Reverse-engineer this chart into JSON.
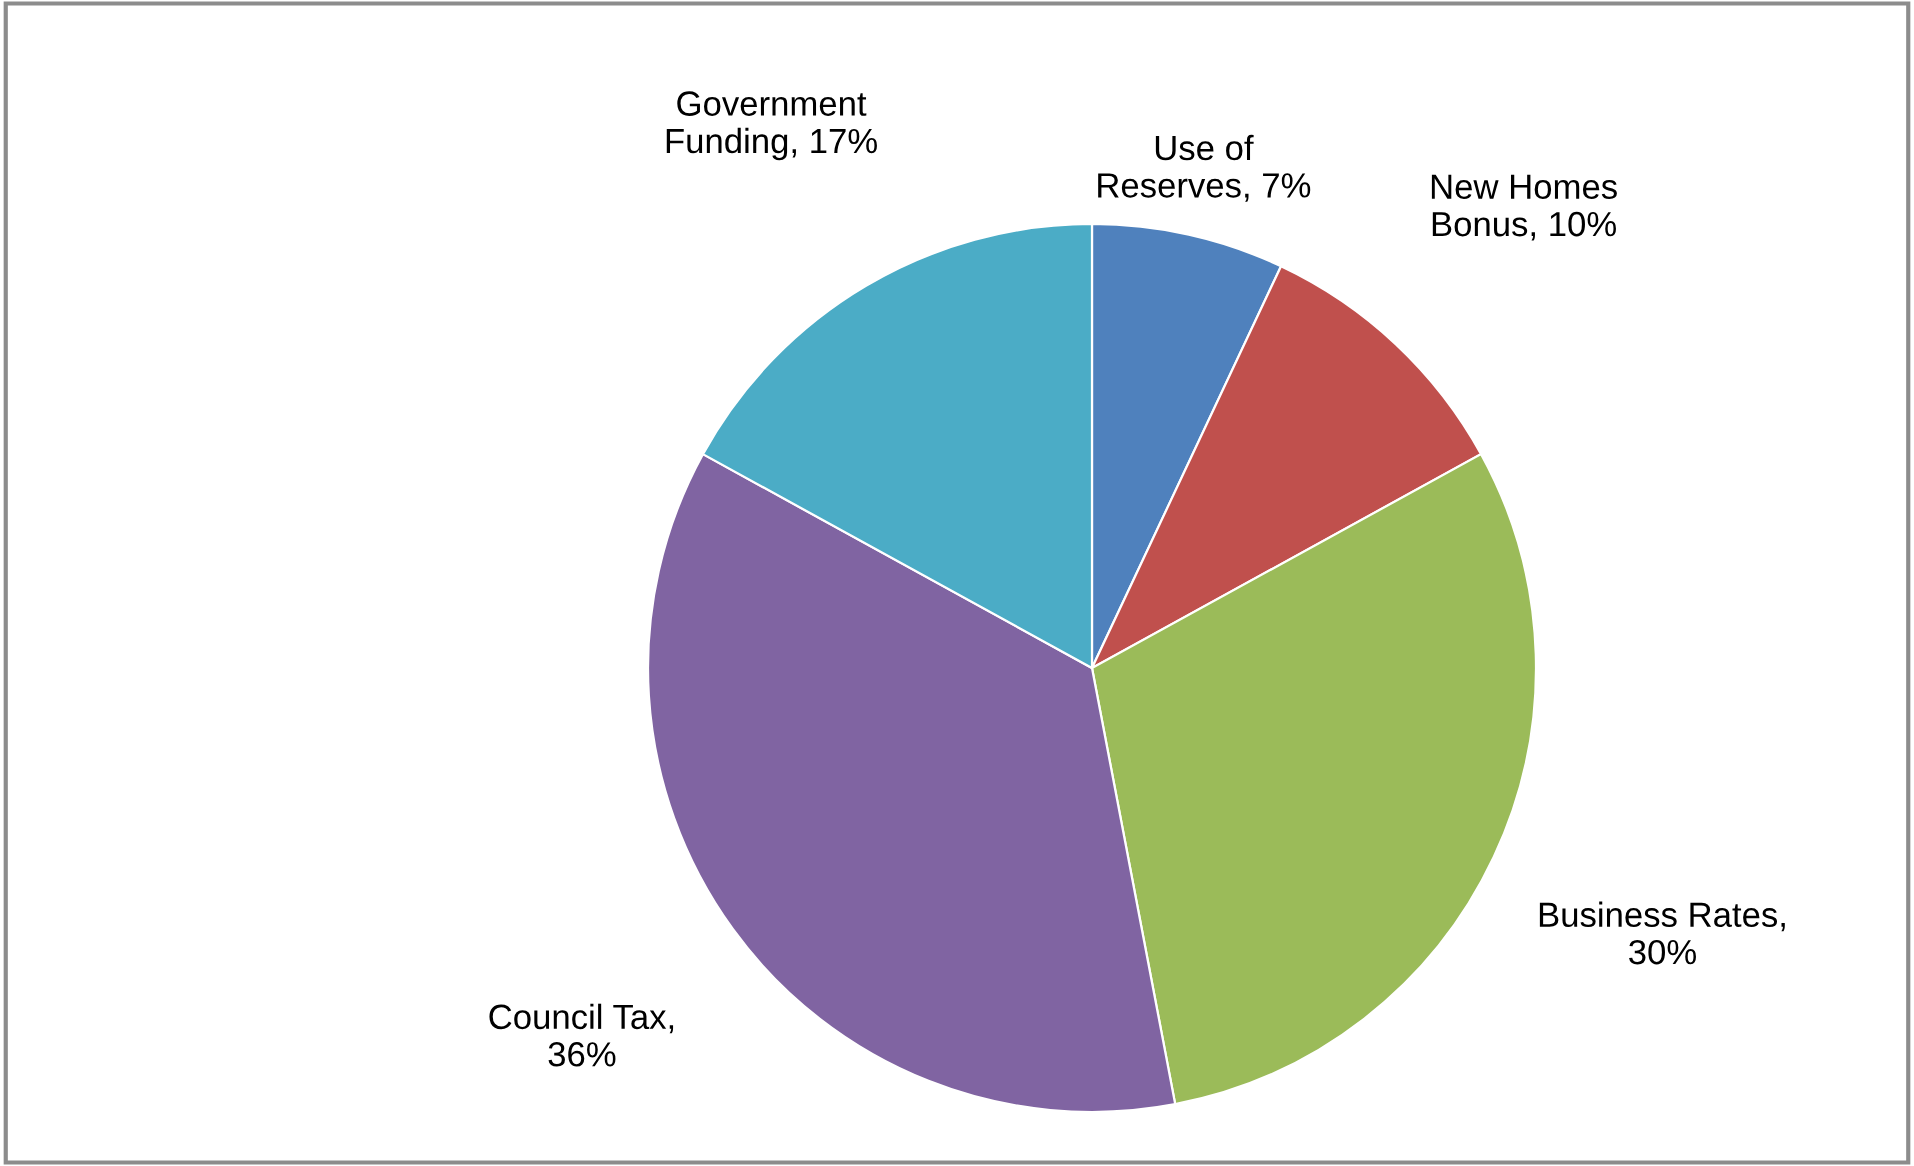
{
  "chart_data": {
    "type": "pie",
    "categories": [
      "Use of\nReserves, 7%",
      "New Homes\nBonus, 10%",
      "Business Rates,\n30%",
      "Council Tax,\n36%",
      "Government\nFunding, 17%"
    ],
    "values": [
      7,
      10,
      30,
      36,
      17
    ],
    "colors": [
      "#4f81bd",
      "#c0504d",
      "#9bbb59",
      "#8064a2",
      "#4bacc6"
    ]
  }
}
